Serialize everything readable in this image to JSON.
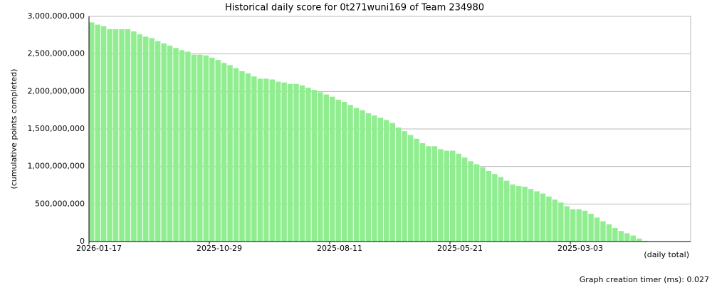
{
  "chart_data": {
    "type": "bar",
    "title": "Historical daily score for 0t271wuni169 of Team 234980",
    "y_label": "(cumulative points completed)",
    "x_label": "(daily total)",
    "footer": "Graph creation timer (ms): 0.027",
    "color": "#90ee90",
    "grid": true,
    "categories": [
      "2026-01-17",
      null,
      null,
      null,
      null,
      null,
      null,
      null,
      null,
      null,
      null,
      null,
      null,
      null,
      null,
      null,
      null,
      null,
      null,
      null,
      "2025-10-29",
      null,
      null,
      null,
      null,
      null,
      null,
      null,
      null,
      null,
      null,
      null,
      null,
      null,
      null,
      null,
      null,
      null,
      null,
      null,
      "2025-08-11",
      null,
      null,
      null,
      null,
      null,
      null,
      null,
      null,
      null,
      null,
      null,
      null,
      null,
      null,
      null,
      null,
      null,
      null,
      null,
      "2025-05-21",
      null,
      null,
      null,
      null,
      null,
      null,
      null,
      null,
      null,
      null,
      null,
      null,
      null,
      null,
      null,
      null,
      null,
      null,
      null,
      "2025-03-03",
      null,
      null,
      null,
      null,
      null,
      null,
      null,
      null,
      null,
      null,
      null,
      null,
      null,
      null,
      null,
      null,
      null,
      null,
      null
    ],
    "values": [
      2920000000,
      2890000000,
      2870000000,
      2830000000,
      2830000000,
      2830000000,
      2830000000,
      2800000000,
      2760000000,
      2730000000,
      2710000000,
      2670000000,
      2640000000,
      2610000000,
      2580000000,
      2550000000,
      2530000000,
      2490000000,
      2490000000,
      2480000000,
      2450000000,
      2420000000,
      2380000000,
      2350000000,
      2310000000,
      2270000000,
      2240000000,
      2200000000,
      2170000000,
      2170000000,
      2160000000,
      2130000000,
      2120000000,
      2100000000,
      2100000000,
      2080000000,
      2050000000,
      2020000000,
      1990000000,
      1960000000,
      1930000000,
      1890000000,
      1860000000,
      1820000000,
      1780000000,
      1750000000,
      1710000000,
      1680000000,
      1650000000,
      1620000000,
      1580000000,
      1520000000,
      1470000000,
      1420000000,
      1370000000,
      1310000000,
      1270000000,
      1270000000,
      1230000000,
      1210000000,
      1210000000,
      1170000000,
      1120000000,
      1070000000,
      1030000000,
      990000000,
      940000000,
      900000000,
      860000000,
      810000000,
      760000000,
      740000000,
      730000000,
      700000000,
      670000000,
      640000000,
      600000000,
      560000000,
      520000000,
      470000000,
      430000000,
      430000000,
      410000000,
      370000000,
      320000000,
      270000000,
      230000000,
      180000000,
      140000000,
      110000000,
      80000000,
      40000000,
      10000000,
      0,
      0,
      0,
      0,
      0,
      0,
      0
    ],
    "ylim": [
      0,
      3000000000
    ],
    "yticks": [
      0,
      {
        "value": 500000000,
        "label": "500,000,000"
      },
      {
        "value": 1000000000,
        "label": "1,000,000,000"
      },
      {
        "value": 1500000000,
        "label": "1,500,000,000"
      },
      {
        "value": 2000000000,
        "label": "2,000,000,000"
      },
      {
        "value": 2500000000,
        "label": "2,500,000,000"
      },
      {
        "value": 3000000000,
        "label": "3,000,000,000"
      }
    ]
  }
}
